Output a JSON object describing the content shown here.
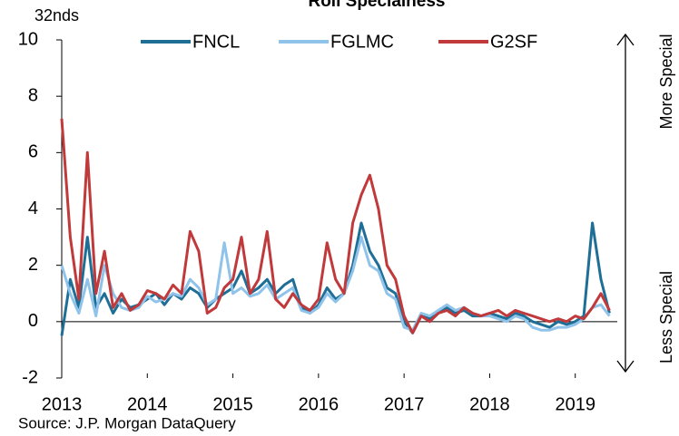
{
  "chart_data": {
    "type": "line",
    "title": "Roll Specialness",
    "y_unit": "32nds",
    "source": "Source: J.P. Morgan  DataQuery",
    "annotations": [
      "More Special",
      "Less Special"
    ],
    "x": [
      2013.0,
      2013.1,
      2013.2,
      2013.3,
      2013.4,
      2013.5,
      2013.6,
      2013.7,
      2013.8,
      2013.9,
      2014.0,
      2014.1,
      2014.2,
      2014.3,
      2014.4,
      2014.5,
      2014.6,
      2014.7,
      2014.8,
      2014.9,
      2015.0,
      2015.1,
      2015.2,
      2015.3,
      2015.4,
      2015.5,
      2015.6,
      2015.7,
      2015.8,
      2015.9,
      2016.0,
      2016.1,
      2016.2,
      2016.3,
      2016.4,
      2016.5,
      2016.6,
      2016.7,
      2016.8,
      2016.9,
      2017.0,
      2017.1,
      2017.2,
      2017.3,
      2017.4,
      2017.5,
      2017.6,
      2017.7,
      2017.8,
      2017.9,
      2018.0,
      2018.1,
      2018.2,
      2018.3,
      2018.4,
      2018.5,
      2018.6,
      2018.7,
      2018.8,
      2018.9,
      2019.0,
      2019.1,
      2019.2,
      2019.3,
      2019.4
    ],
    "series": [
      {
        "name": "FNCL",
        "color": "#1f6e96",
        "values": [
          -0.5,
          1.5,
          0.5,
          3.0,
          0.5,
          1.0,
          0.3,
          0.8,
          0.5,
          0.6,
          0.8,
          1.0,
          0.6,
          1.0,
          0.8,
          1.2,
          1.0,
          0.5,
          0.8,
          1.0,
          1.2,
          1.8,
          1.0,
          1.2,
          1.5,
          1.0,
          1.3,
          1.5,
          0.5,
          0.3,
          0.6,
          1.2,
          0.8,
          1.0,
          2.0,
          3.5,
          2.5,
          2.0,
          1.2,
          1.0,
          0.0,
          -0.4,
          0.2,
          0.1,
          0.3,
          0.5,
          0.3,
          0.4,
          0.2,
          0.2,
          0.3,
          0.2,
          0.1,
          0.3,
          0.2,
          0.0,
          -0.1,
          -0.2,
          0.0,
          -0.1,
          0.0,
          0.2,
          3.5,
          1.5,
          0.3
        ]
      },
      {
        "name": "FGLMC",
        "color": "#8fc3ea",
        "values": [
          2.0,
          1.0,
          0.3,
          1.5,
          0.2,
          2.0,
          1.0,
          0.5,
          0.4,
          0.5,
          0.9,
          0.7,
          0.8,
          1.0,
          0.9,
          1.5,
          1.2,
          0.6,
          0.8,
          2.8,
          1.0,
          1.2,
          0.9,
          1.0,
          1.3,
          0.8,
          1.0,
          1.2,
          0.4,
          0.3,
          0.5,
          1.0,
          0.7,
          1.0,
          1.8,
          3.0,
          2.0,
          1.8,
          1.0,
          0.8,
          -0.2,
          -0.3,
          0.3,
          0.2,
          0.4,
          0.6,
          0.4,
          0.5,
          0.3,
          0.2,
          0.2,
          0.1,
          0.0,
          0.2,
          0.1,
          -0.2,
          -0.3,
          -0.3,
          -0.2,
          -0.2,
          -0.1,
          0.1,
          0.5,
          0.6,
          0.2
        ]
      },
      {
        "name": "G2SF",
        "color": "#c0393b",
        "values": [
          7.2,
          3.0,
          0.8,
          6.0,
          1.0,
          2.5,
          0.5,
          1.0,
          0.4,
          0.6,
          1.1,
          1.0,
          0.8,
          1.3,
          1.0,
          3.2,
          2.5,
          0.3,
          0.5,
          1.2,
          1.5,
          3.0,
          1.0,
          1.5,
          3.2,
          0.8,
          0.5,
          1.0,
          0.6,
          0.4,
          0.8,
          2.8,
          1.5,
          1.0,
          3.5,
          4.5,
          5.2,
          4.0,
          2.0,
          1.5,
          0.2,
          -0.4,
          0.2,
          0.0,
          0.3,
          0.4,
          0.2,
          0.5,
          0.3,
          0.2,
          0.3,
          0.4,
          0.2,
          0.4,
          0.3,
          0.2,
          0.1,
          0.0,
          0.1,
          0.0,
          0.2,
          0.1,
          0.5,
          1.0,
          0.4
        ]
      }
    ],
    "xlim": [
      2013,
      2019.65
    ],
    "xticks": [
      2013,
      2014,
      2015,
      2016,
      2017,
      2018,
      2019
    ],
    "ylim": [
      -2,
      10
    ],
    "yticks": [
      -2,
      0,
      2,
      4,
      6,
      8,
      10
    ],
    "legend": "top"
  }
}
